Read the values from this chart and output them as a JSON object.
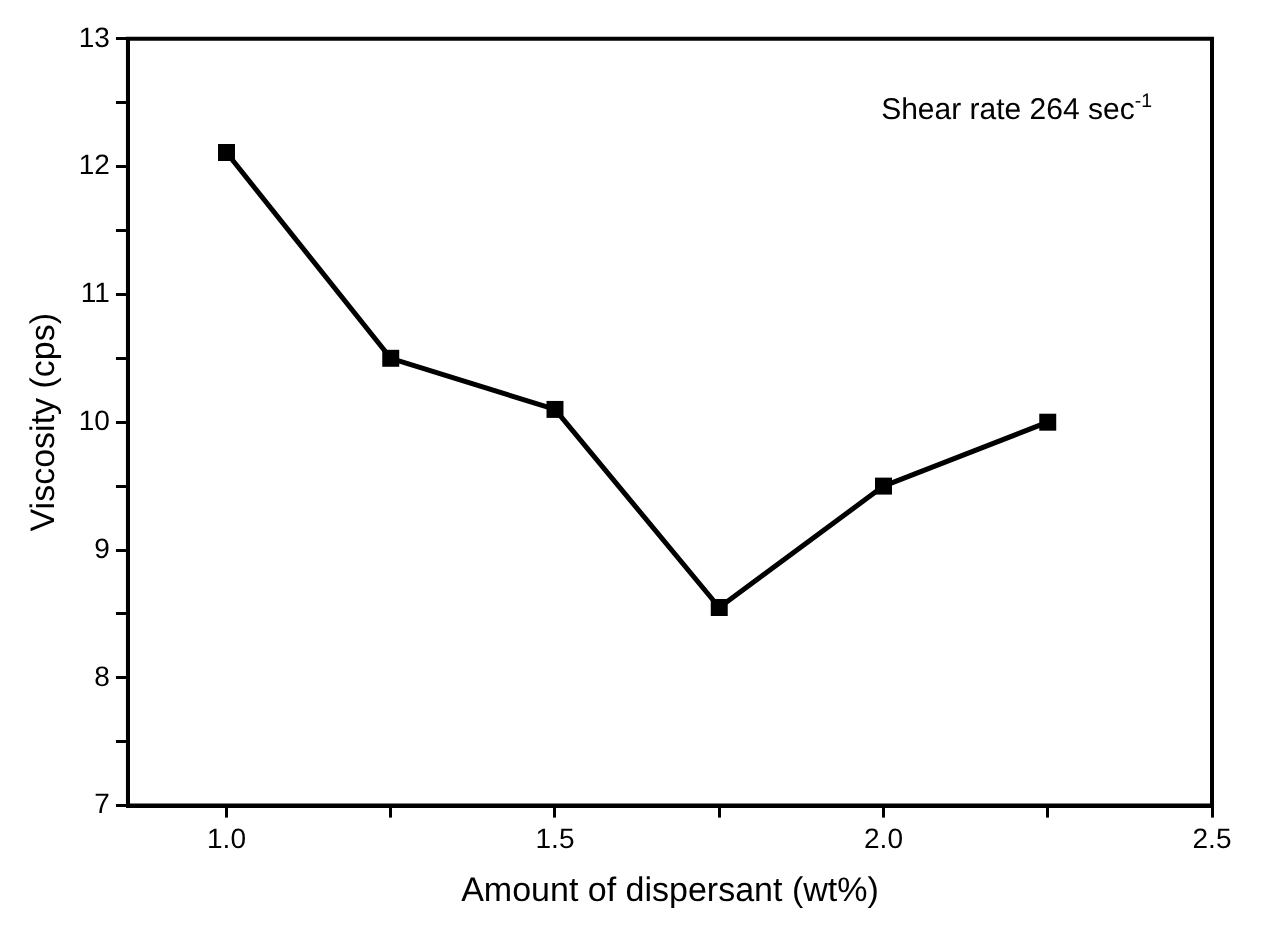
{
  "chart_data": {
    "type": "line",
    "xlabel": "Amount of dispersant (wt%)",
    "ylabel": "Viscosity (cps)",
    "annotations": [
      "Shear rate 264 sec$^{-1}$"
    ],
    "x": [
      1.0,
      1.25,
      1.5,
      1.75,
      2.0,
      2.25
    ],
    "series": [
      {
        "color": "#000000",
        "values": [
          12.11,
          10.5,
          10.1,
          8.55,
          9.5,
          10.0
        ]
      }
    ],
    "xlim": [
      0.85,
      2.5
    ],
    "xticks": [
      {
        "value": 1,
        "label": "1.0"
      },
      {
        "value": 1.25,
        "label": null
      },
      {
        "value": 1.5,
        "label": "1.5"
      },
      {
        "value": 1.75,
        "label": null
      },
      {
        "value": 2,
        "label": "2.0"
      },
      {
        "value": 2.25,
        "label": null
      },
      {
        "value": 2.5,
        "label": "2.5"
      }
    ],
    "ylim": [
      7,
      13
    ],
    "yticks": [
      7,
      {
        "value": 7.5,
        "label": null
      },
      8,
      {
        "value": 8.5,
        "label": null
      },
      9,
      {
        "value": 9.5,
        "label": null
      },
      10,
      {
        "value": 10.5,
        "label": null
      },
      11,
      {
        "value": 11.5,
        "label": null
      },
      12,
      {
        "value": 12.5,
        "label": null
      },
      13
    ],
    "grid": false,
    "legend": false,
    "marker": "square",
    "line_style": "solid"
  }
}
